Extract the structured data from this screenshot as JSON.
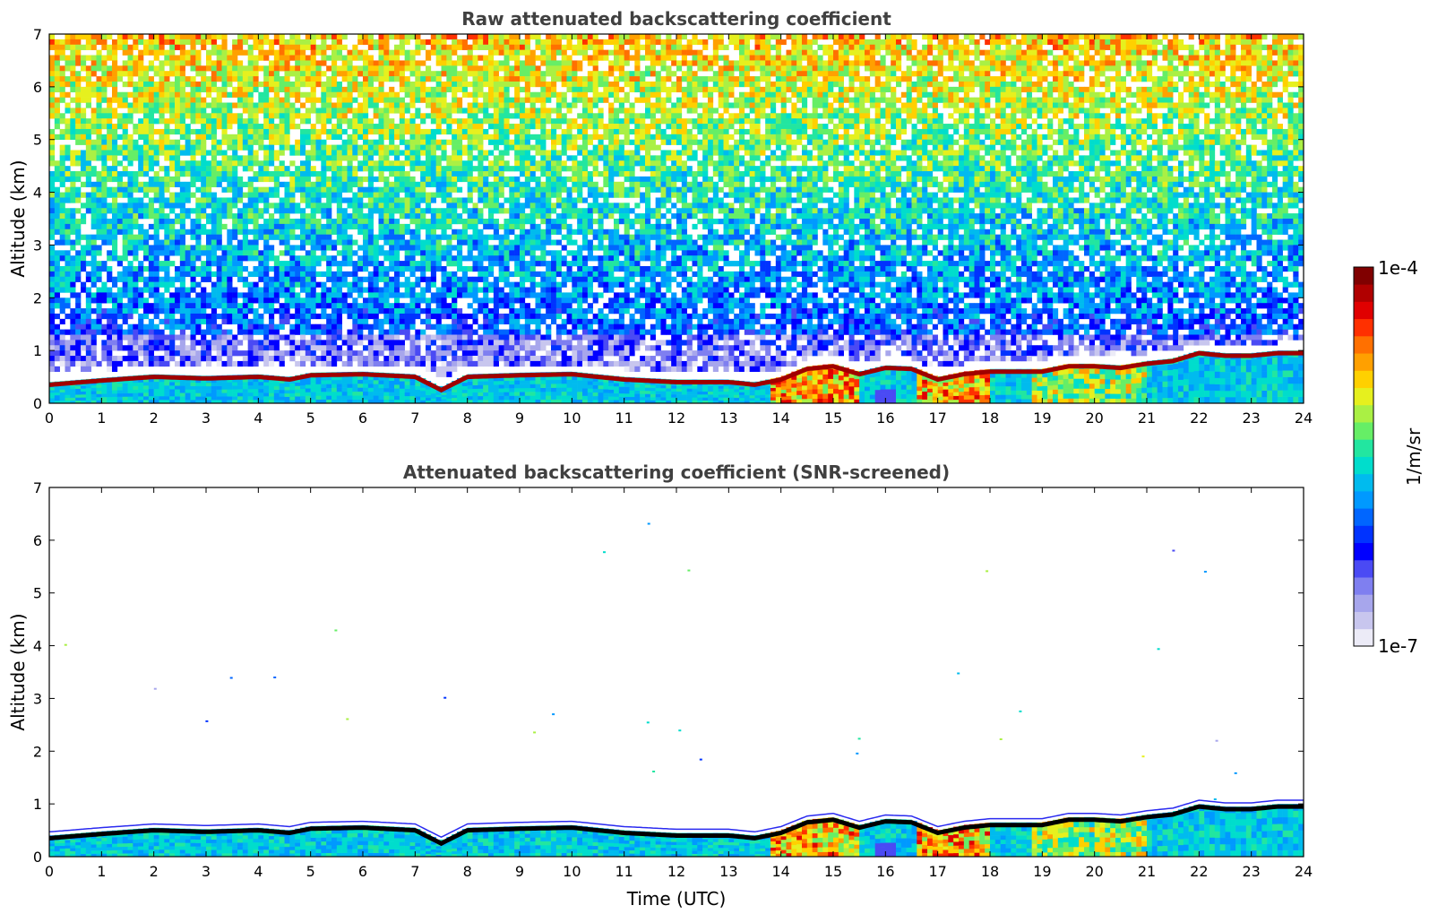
{
  "chart_data": [
    {
      "type": "heatmap",
      "title": "Raw attenuated backscattering coefficient",
      "xlabel": "",
      "ylabel": "Altitude (km)",
      "xlim": [
        0,
        24
      ],
      "ylim": [
        0,
        7
      ],
      "xticks": [
        "0",
        "1",
        "2",
        "3",
        "4",
        "5",
        "6",
        "7",
        "8",
        "9",
        "10",
        "11",
        "12",
        "13",
        "14",
        "15",
        "16",
        "17",
        "18",
        "19",
        "20",
        "21",
        "22",
        "23",
        "24"
      ],
      "yticks": [
        "0",
        "1",
        "2",
        "3",
        "4",
        "5",
        "6",
        "7"
      ],
      "screened": false,
      "layer_top_km": [
        [
          0,
          0.4
        ],
        [
          1,
          0.48
        ],
        [
          2,
          0.55
        ],
        [
          3,
          0.52
        ],
        [
          4,
          0.55
        ],
        [
          4.6,
          0.5
        ],
        [
          5,
          0.58
        ],
        [
          6,
          0.6
        ],
        [
          7,
          0.55
        ],
        [
          7.5,
          0.3
        ],
        [
          8,
          0.55
        ],
        [
          9,
          0.58
        ],
        [
          10,
          0.6
        ],
        [
          11,
          0.5
        ],
        [
          12,
          0.45
        ],
        [
          13,
          0.45
        ],
        [
          13.5,
          0.4
        ],
        [
          14,
          0.5
        ],
        [
          14.5,
          0.7
        ],
        [
          15,
          0.75
        ],
        [
          15.5,
          0.6
        ],
        [
          16,
          0.72
        ],
        [
          16.5,
          0.7
        ],
        [
          17,
          0.5
        ],
        [
          17.5,
          0.6
        ],
        [
          18,
          0.65
        ],
        [
          19,
          0.65
        ],
        [
          19.5,
          0.75
        ],
        [
          20,
          0.75
        ],
        [
          20.5,
          0.72
        ],
        [
          21,
          0.8
        ],
        [
          21.5,
          0.85
        ],
        [
          22,
          1.0
        ],
        [
          22.5,
          0.95
        ],
        [
          23,
          0.95
        ],
        [
          23.5,
          1.0
        ],
        [
          24,
          1.0
        ]
      ]
    },
    {
      "type": "heatmap",
      "title": "Attenuated backscattering coefficient (SNR-screened)",
      "xlabel": "Time (UTC)",
      "ylabel": "Altitude (km)",
      "xlim": [
        0,
        24
      ],
      "ylim": [
        0,
        7
      ],
      "xticks": [
        "0",
        "1",
        "2",
        "3",
        "4",
        "5",
        "6",
        "7",
        "8",
        "9",
        "10",
        "11",
        "12",
        "13",
        "14",
        "15",
        "16",
        "17",
        "18",
        "19",
        "20",
        "21",
        "22",
        "23",
        "24"
      ],
      "yticks": [
        "0",
        "1",
        "2",
        "3",
        "4",
        "5",
        "6",
        "7"
      ],
      "screened": true,
      "layer_top_km": [
        [
          0,
          0.4
        ],
        [
          1,
          0.48
        ],
        [
          2,
          0.55
        ],
        [
          3,
          0.52
        ],
        [
          4,
          0.55
        ],
        [
          4.6,
          0.5
        ],
        [
          5,
          0.58
        ],
        [
          6,
          0.6
        ],
        [
          7,
          0.55
        ],
        [
          7.5,
          0.3
        ],
        [
          8,
          0.55
        ],
        [
          9,
          0.58
        ],
        [
          10,
          0.6
        ],
        [
          11,
          0.5
        ],
        [
          12,
          0.45
        ],
        [
          13,
          0.45
        ],
        [
          13.5,
          0.4
        ],
        [
          14,
          0.5
        ],
        [
          14.5,
          0.7
        ],
        [
          15,
          0.75
        ],
        [
          15.5,
          0.6
        ],
        [
          16,
          0.72
        ],
        [
          16.5,
          0.7
        ],
        [
          17,
          0.5
        ],
        [
          17.5,
          0.6
        ],
        [
          18,
          0.65
        ],
        [
          19,
          0.65
        ],
        [
          19.5,
          0.75
        ],
        [
          20,
          0.75
        ],
        [
          20.5,
          0.72
        ],
        [
          21,
          0.8
        ],
        [
          21.5,
          0.85
        ],
        [
          22,
          1.0
        ],
        [
          22.5,
          0.95
        ],
        [
          23,
          0.95
        ],
        [
          23.5,
          1.0
        ],
        [
          24,
          1.0
        ]
      ]
    }
  ],
  "colorbar": {
    "label": "1/m/sr",
    "max_label": "1e-4",
    "min_label": "1e-7",
    "colors": [
      "#ecebf7",
      "#c8c6ee",
      "#a7a6ec",
      "#7f7ff0",
      "#4a4af4",
      "#0000ff",
      "#0033ff",
      "#0066ff",
      "#0099ff",
      "#00bbee",
      "#00ddcc",
      "#22e6a0",
      "#66ee66",
      "#aaf044",
      "#e6f01e",
      "#ffd000",
      "#ffa000",
      "#ff7000",
      "#ff3000",
      "#e00000",
      "#b00000",
      "#800000"
    ]
  }
}
